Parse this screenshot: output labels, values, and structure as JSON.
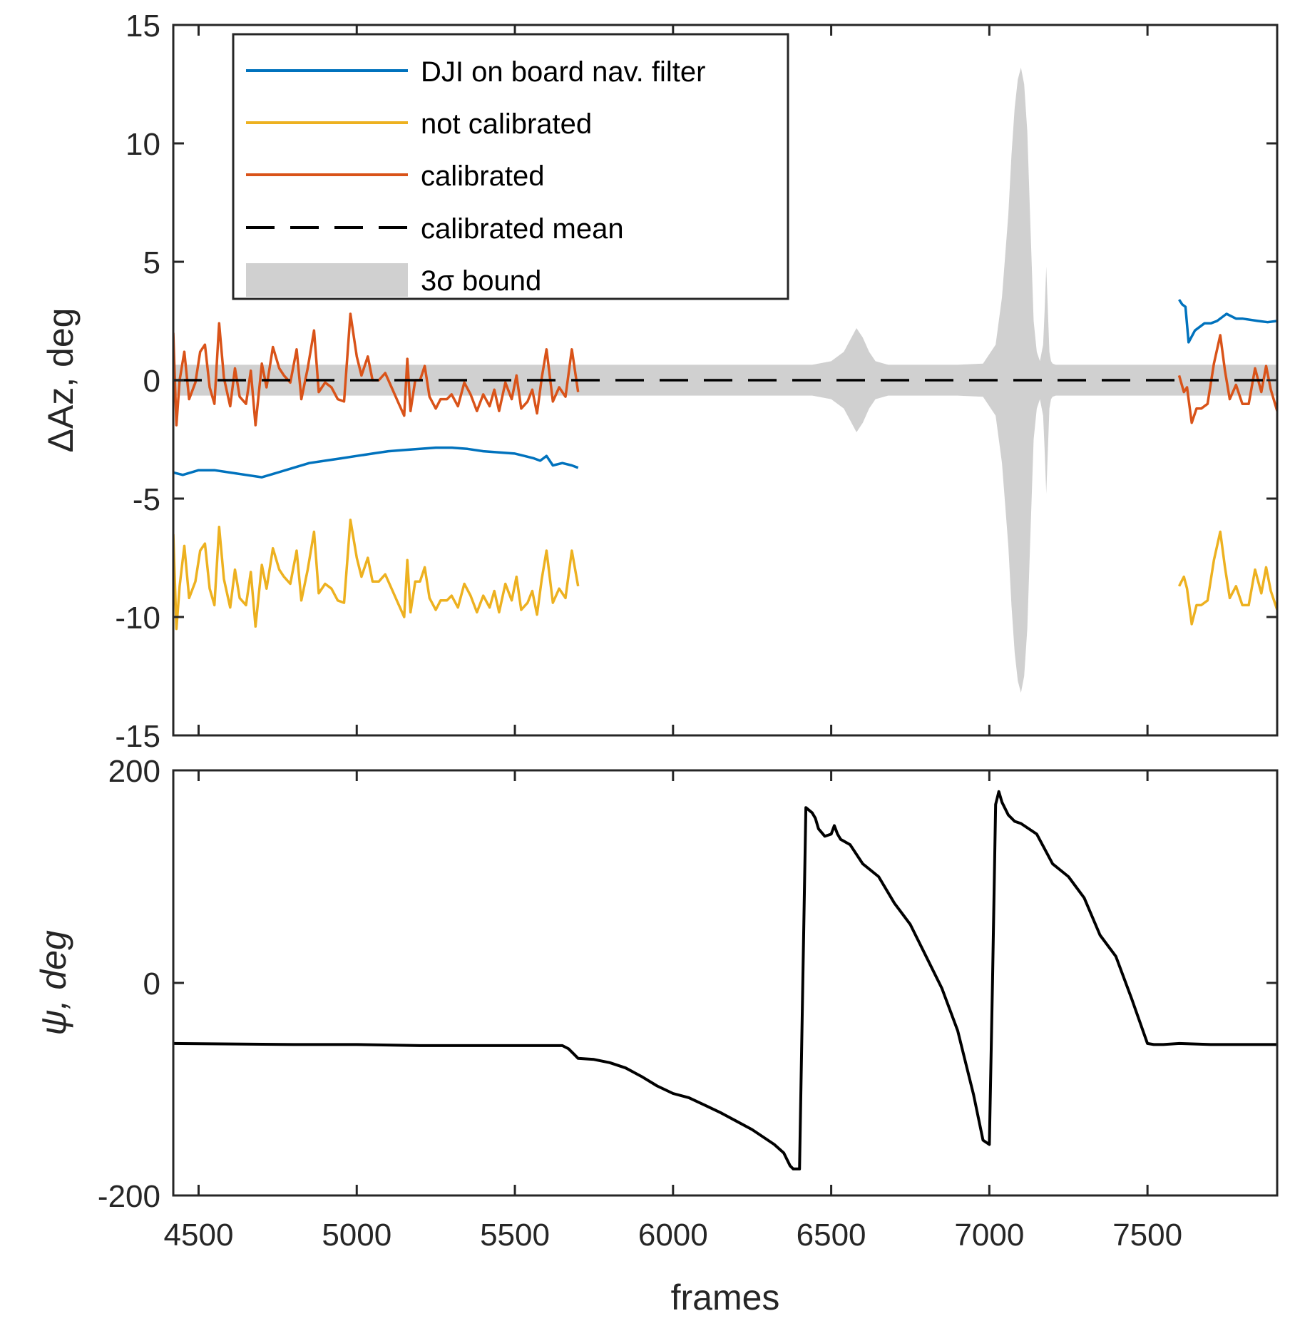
{
  "chart_data": [
    {
      "type": "line",
      "panel": "top",
      "title": "",
      "xlabel": "",
      "ylabel": "ΔAz, deg",
      "xlim": [
        4420,
        7910
      ],
      "ylim": [
        -15,
        15
      ],
      "xticks": [
        4500,
        5000,
        5500,
        6000,
        6500,
        7000,
        7500
      ],
      "xtick_labels_shown": false,
      "yticks": [
        -15,
        -10,
        -5,
        0,
        5,
        10,
        15
      ],
      "ytick_labels": [
        "-15",
        "-10",
        "-5",
        "0",
        "5",
        "10",
        "15"
      ],
      "grid": false,
      "legend_position": "top-left",
      "legend": [
        {
          "label": "DJI on board nav. filter",
          "style": "line",
          "color": "#0072BD"
        },
        {
          "label": "not calibrated",
          "style": "line",
          "color": "#EDB120"
        },
        {
          "label": "calibrated",
          "style": "line",
          "color": "#D95319"
        },
        {
          "label": "calibrated mean",
          "style": "dashed",
          "color": "#000000"
        },
        {
          "label": "3σ bound",
          "style": "patch",
          "color": "#D0D0D0"
        }
      ],
      "series": [
        {
          "name": "DJI on board nav. filter",
          "color": "#0072BD",
          "segments": [
            {
              "x": [
                4420,
                4450,
                4500,
                4550,
                4600,
                4650,
                4700,
                4750,
                4800,
                4850,
                4900,
                4950,
                5000,
                5050,
                5100,
                5150,
                5200,
                5250,
                5300,
                5350,
                5400,
                5450,
                5500,
                5530,
                5560,
                5580,
                5600,
                5620,
                5650,
                5680,
                5700
              ],
              "y": [
                -3.9,
                -4.0,
                -3.8,
                -3.8,
                -3.9,
                -4.0,
                -4.1,
                -3.9,
                -3.7,
                -3.5,
                -3.4,
                -3.3,
                -3.2,
                -3.1,
                -3.0,
                -2.95,
                -2.9,
                -2.85,
                -2.85,
                -2.9,
                -3.0,
                -3.05,
                -3.1,
                -3.2,
                -3.3,
                -3.4,
                -3.2,
                -3.6,
                -3.5,
                -3.6,
                -3.7
              ]
            },
            {
              "x": [
                7600,
                7610,
                7620,
                7630,
                7650,
                7680,
                7700,
                7720,
                7750,
                7780,
                7800,
                7850,
                7880,
                7910
              ],
              "y": [
                3.4,
                3.2,
                3.1,
                1.6,
                2.1,
                2.4,
                2.4,
                2.5,
                2.8,
                2.6,
                2.6,
                2.5,
                2.45,
                2.5
              ]
            }
          ]
        },
        {
          "name": "not calibrated",
          "color": "#EDB120",
          "segments": [
            {
              "x": [
                4420,
                4430,
                4440,
                4455,
                4470,
                4490,
                4505,
                4520,
                4535,
                4550,
                4565,
                4580,
                4600,
                4615,
                4630,
                4650,
                4665,
                4680,
                4700,
                4715,
                4735,
                4755,
                4770,
                4790,
                4810,
                4825,
                4845,
                4865,
                4880,
                4900,
                4920,
                4940,
                4960,
                4980,
                5000,
                5015,
                5035,
                5050,
                5070,
                5090,
                5110,
                5130,
                5150,
                5160,
                5170,
                5185,
                5200,
                5215,
                5230,
                5250,
                5265,
                5285,
                5300,
                5320,
                5340,
                5360,
                5380,
                5400,
                5420,
                5435,
                5450,
                5470,
                5490,
                5505,
                5520,
                5540,
                5555,
                5570,
                5585,
                5600,
                5620,
                5640,
                5660,
                5680,
                5700
              ],
              "y": [
                -6.5,
                -10.5,
                -8.7,
                -7.0,
                -9.2,
                -8.5,
                -7.2,
                -6.9,
                -8.8,
                -9.5,
                -6.2,
                -8.4,
                -9.6,
                -8.0,
                -9.2,
                -9.5,
                -8.1,
                -10.4,
                -7.8,
                -8.8,
                -7.1,
                -8.0,
                -8.3,
                -8.6,
                -7.2,
                -9.3,
                -8.0,
                -6.4,
                -9.0,
                -8.6,
                -8.8,
                -9.3,
                -9.4,
                -5.9,
                -7.5,
                -8.3,
                -7.5,
                -8.5,
                -8.5,
                -8.2,
                -8.8,
                -9.4,
                -10.0,
                -7.6,
                -9.8,
                -8.5,
                -8.5,
                -7.9,
                -9.2,
                -9.7,
                -9.3,
                -9.3,
                -9.1,
                -9.6,
                -8.6,
                -9.1,
                -9.8,
                -9.1,
                -9.6,
                -8.9,
                -9.8,
                -8.6,
                -9.3,
                -8.3,
                -9.7,
                -9.4,
                -8.9,
                -9.9,
                -8.4,
                -7.2,
                -9.4,
                -8.8,
                -9.2,
                -7.2,
                -8.7
              ]
            },
            {
              "x": [
                7600,
                7615,
                7625,
                7640,
                7655,
                7670,
                7690,
                7710,
                7730,
                7745,
                7760,
                7780,
                7800,
                7820,
                7840,
                7860,
                7875,
                7890,
                7910
              ],
              "y": [
                -8.7,
                -8.3,
                -8.8,
                -10.3,
                -9.5,
                -9.5,
                -9.3,
                -7.6,
                -6.4,
                -7.9,
                -9.2,
                -8.7,
                -9.5,
                -9.5,
                -8.0,
                -9.0,
                -7.9,
                -8.9,
                -9.7
              ]
            }
          ]
        },
        {
          "name": "calibrated",
          "color": "#D95319",
          "segments": [
            {
              "x": [
                4420,
                4430,
                4440,
                4455,
                4470,
                4490,
                4505,
                4520,
                4535,
                4550,
                4565,
                4580,
                4600,
                4615,
                4630,
                4650,
                4665,
                4680,
                4700,
                4715,
                4735,
                4755,
                4770,
                4790,
                4810,
                4825,
                4845,
                4865,
                4880,
                4900,
                4920,
                4940,
                4960,
                4980,
                5000,
                5015,
                5035,
                5050,
                5070,
                5090,
                5110,
                5130,
                5150,
                5160,
                5170,
                5185,
                5200,
                5215,
                5230,
                5250,
                5265,
                5285,
                5300,
                5320,
                5340,
                5360,
                5380,
                5400,
                5420,
                5435,
                5450,
                5470,
                5490,
                5505,
                5520,
                5540,
                5555,
                5570,
                5585,
                5600,
                5620,
                5640,
                5660,
                5680,
                5700
              ],
              "y": [
                2.0,
                -1.9,
                0.0,
                1.2,
                -0.8,
                -0.1,
                1.2,
                1.5,
                -0.3,
                -1.0,
                2.4,
                0.1,
                -1.1,
                0.5,
                -0.7,
                -1.0,
                0.4,
                -1.9,
                0.7,
                -0.3,
                1.4,
                0.5,
                0.2,
                -0.1,
                1.3,
                -0.8,
                0.5,
                2.1,
                -0.5,
                -0.1,
                -0.3,
                -0.8,
                -0.9,
                2.8,
                1.0,
                0.2,
                1.0,
                0.0,
                0.0,
                0.3,
                -0.3,
                -0.9,
                -1.5,
                0.9,
                -1.3,
                0.0,
                0.0,
                0.6,
                -0.7,
                -1.2,
                -0.8,
                -0.8,
                -0.6,
                -1.1,
                -0.1,
                -0.6,
                -1.3,
                -0.6,
                -1.1,
                -0.4,
                -1.3,
                -0.1,
                -0.8,
                0.2,
                -1.2,
                -0.9,
                -0.4,
                -1.4,
                0.1,
                1.3,
                -0.9,
                -0.3,
                -0.7,
                1.3,
                -0.5
              ]
            },
            {
              "x": [
                7600,
                7615,
                7625,
                7640,
                7655,
                7670,
                7690,
                7710,
                7730,
                7745,
                7760,
                7780,
                7800,
                7820,
                7840,
                7860,
                7875,
                7890,
                7910
              ],
              "y": [
                0.2,
                -0.5,
                -0.3,
                -1.8,
                -1.2,
                -1.2,
                -1.0,
                0.7,
                1.9,
                0.4,
                -0.8,
                -0.2,
                -1.0,
                -1.0,
                0.5,
                -0.5,
                0.6,
                -0.4,
                -1.3
              ]
            }
          ]
        },
        {
          "name": "calibrated mean",
          "color": "#000000",
          "style": "dashed",
          "x": [
            4420,
            7910
          ],
          "y": [
            0,
            0
          ]
        },
        {
          "name": "3σ bound",
          "color": "#D0D0D0",
          "style": "band",
          "x": [
            4420,
            6440,
            6500,
            6540,
            6560,
            6580,
            6600,
            6620,
            6640,
            6680,
            6900,
            6980,
            7020,
            7040,
            7060,
            7070,
            7080,
            7090,
            7100,
            7110,
            7120,
            7130,
            7140,
            7150,
            7160,
            7170,
            7175,
            7180,
            7185,
            7190,
            7195,
            7200,
            7210,
            7400,
            7910
          ],
          "upper": [
            0.65,
            0.65,
            0.8,
            1.2,
            1.7,
            2.2,
            1.8,
            1.2,
            0.8,
            0.65,
            0.65,
            0.7,
            1.5,
            3.5,
            7.0,
            9.5,
            11.5,
            12.7,
            13.2,
            12.5,
            10.5,
            6.5,
            2.5,
            1.2,
            0.8,
            1.5,
            3.0,
            4.8,
            3.0,
            1.2,
            0.8,
            0.7,
            0.65,
            0.65,
            0.65
          ],
          "lower": [
            -0.65,
            -0.65,
            -0.8,
            -1.2,
            -1.7,
            -2.2,
            -1.8,
            -1.2,
            -0.8,
            -0.65,
            -0.65,
            -0.7,
            -1.5,
            -3.5,
            -7.0,
            -9.5,
            -11.5,
            -12.7,
            -13.2,
            -12.5,
            -10.5,
            -6.5,
            -2.5,
            -1.2,
            -0.8,
            -1.5,
            -3.0,
            -4.8,
            -3.0,
            -1.2,
            -0.8,
            -0.7,
            -0.65,
            -0.65,
            -0.65
          ]
        }
      ]
    },
    {
      "type": "line",
      "panel": "bottom",
      "title": "",
      "xlabel": "frames",
      "ylabel": "ψ, deg",
      "xlim": [
        4420,
        7910
      ],
      "ylim": [
        -200,
        200
      ],
      "xticks": [
        4500,
        5000,
        5500,
        6000,
        6500,
        7000,
        7500
      ],
      "xtick_labels": [
        "4500",
        "5000",
        "5500",
        "6000",
        "6500",
        "7000",
        "7500"
      ],
      "yticks": [
        -200,
        0,
        200
      ],
      "ytick_labels": [
        "-200",
        "0",
        "200"
      ],
      "grid": false,
      "series": [
        {
          "name": "ψ",
          "color": "#000000",
          "x": [
            4420,
            4800,
            5000,
            5200,
            5400,
            5650,
            5670,
            5690,
            5700,
            5750,
            5800,
            5850,
            5900,
            5950,
            6000,
            6050,
            6100,
            6150,
            6200,
            6250,
            6300,
            6320,
            6350,
            6370,
            6380,
            6390,
            6400,
            6420,
            6440,
            6450,
            6460,
            6480,
            6500,
            6510,
            6520,
            6530,
            6560,
            6600,
            6650,
            6700,
            6750,
            6800,
            6850,
            6900,
            6950,
            6980,
            6990,
            7000,
            7010,
            7020,
            7030,
            7040,
            7060,
            7080,
            7100,
            7150,
            7200,
            7250,
            7300,
            7350,
            7400,
            7450,
            7500,
            7520,
            7550,
            7600,
            7700,
            7800,
            7910
          ],
          "y": [
            -57,
            -58,
            -58,
            -59,
            -59,
            -59,
            -62,
            -68,
            -71,
            -72,
            -75,
            -80,
            -88,
            -97,
            -104,
            -108,
            -115,
            -122,
            -130,
            -138,
            -148,
            -152,
            -160,
            -172,
            -175,
            -175,
            -175,
            165,
            160,
            155,
            145,
            138,
            140,
            148,
            140,
            135,
            130,
            112,
            100,
            75,
            55,
            25,
            -5,
            -45,
            -105,
            -148,
            -150,
            -152,
            0,
            168,
            180,
            170,
            158,
            152,
            150,
            140,
            112,
            100,
            80,
            45,
            25,
            -15,
            -57,
            -58,
            -58,
            -57,
            -58,
            -58,
            -58
          ]
        }
      ]
    }
  ]
}
